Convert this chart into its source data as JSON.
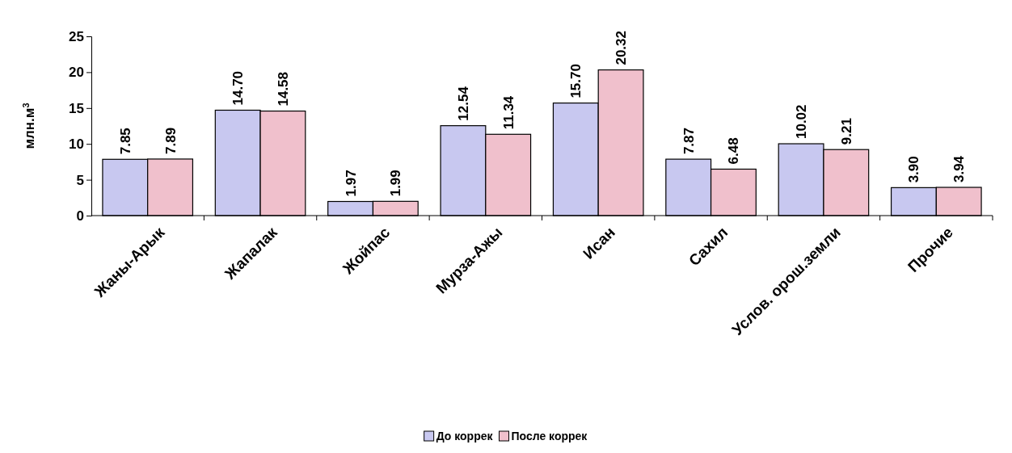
{
  "chart_data": {
    "type": "bar",
    "ylabel": "млн.м$^{3}$",
    "categories": [
      "Жаны-Арык",
      "Жапалак",
      "Жойпас",
      "Мурза-Ажы",
      "Исан",
      "Сахил",
      "Услов. орош.земли",
      "Прочие"
    ],
    "series": [
      {
        "name": "До коррек",
        "color": "#c8c8f0",
        "values": [
          7.85,
          14.7,
          1.97,
          12.54,
          15.7,
          7.87,
          10.02,
          3.9
        ],
        "value_labels": [
          "7.85",
          "14.70",
          "1.97",
          "12.54",
          "15.70",
          "7.87",
          "10.02",
          "3.90"
        ]
      },
      {
        "name": "После коррек",
        "color": "#f0c0cc",
        "values": [
          7.89,
          14.58,
          1.99,
          11.34,
          20.32,
          6.48,
          9.21,
          3.94
        ],
        "value_labels": [
          "7.89",
          "14.58",
          "1.99",
          "11.34",
          "20.32",
          "6.48",
          "9.21",
          "3.94"
        ]
      }
    ],
    "ylim": [
      0,
      25
    ],
    "yticks": [
      0,
      5,
      10,
      15,
      20,
      25
    ],
    "grid": false,
    "legend": "bottom"
  }
}
